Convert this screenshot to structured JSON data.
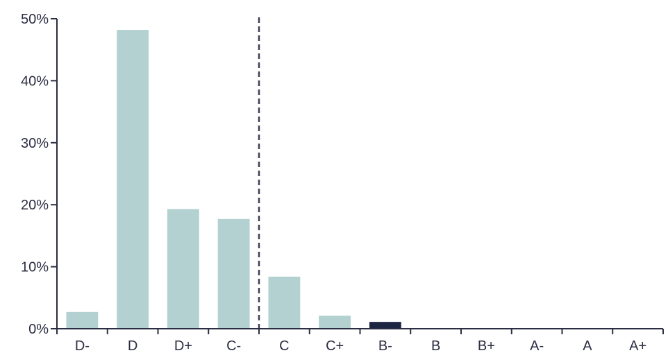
{
  "chart_data": {
    "type": "bar",
    "categories": [
      "D-",
      "D",
      "D+",
      "C-",
      "C",
      "C+",
      "B-",
      "B",
      "B+",
      "A-",
      "A",
      "A+"
    ],
    "values": [
      2.7,
      48.2,
      19.3,
      17.7,
      8.4,
      2.1,
      1.1,
      0,
      0,
      0,
      0,
      0
    ],
    "y_ticks": [
      "0%",
      "10%",
      "20%",
      "30%",
      "40%",
      "50%"
    ],
    "ylim": [
      0,
      50
    ],
    "grid": false,
    "reference_line": {
      "between": [
        "C-",
        "C"
      ],
      "style": "dashed"
    },
    "colors": {
      "bar": "#b3d1d0",
      "highlight_bar": "#1c2541",
      "axis": "#2b2d42",
      "dashed_line": "#3d3f58"
    },
    "highlight_category": "B-"
  }
}
